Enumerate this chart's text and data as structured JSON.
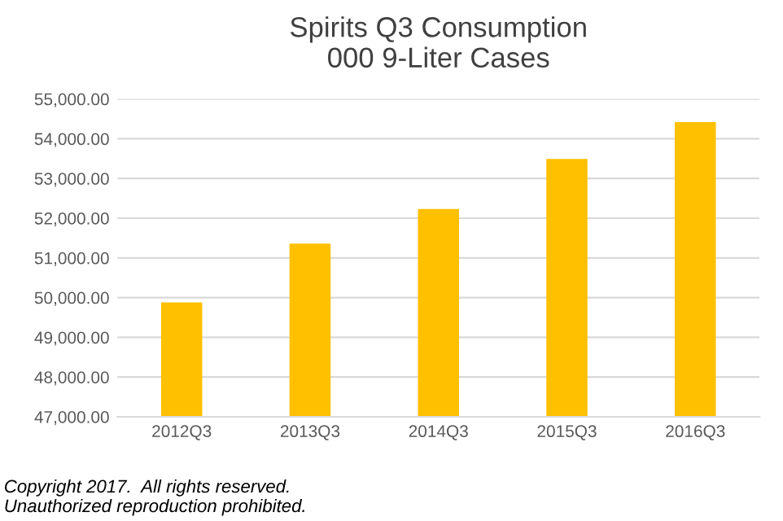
{
  "chart_data": {
    "type": "bar",
    "title": "Spirits Q3 Consumption\n000 9-Liter Cases",
    "categories": [
      "2012Q3",
      "2013Q3",
      "2014Q3",
      "2015Q3",
      "2016Q3"
    ],
    "values": [
      49880,
      51360,
      52230,
      53490,
      54420
    ],
    "color": "#ffc000",
    "ylim": [
      47000,
      55000
    ],
    "yticks": [
      {
        "value": 47000,
        "label": "47,000.00"
      },
      {
        "value": 48000,
        "label": "48,000.00"
      },
      {
        "value": 49000,
        "label": "49,000.00"
      },
      {
        "value": 50000,
        "label": "50,000.00"
      },
      {
        "value": 51000,
        "label": "51,000.00"
      },
      {
        "value": 52000,
        "label": "52,000.00"
      },
      {
        "value": 53000,
        "label": "53,000.00"
      },
      {
        "value": 54000,
        "label": "54,000.00"
      },
      {
        "value": 55000,
        "label": "55,000.00"
      }
    ],
    "grid": "y",
    "annotations": [
      "Copyright 2017.  All rights reserved.\nUnauthorized reproduction prohibited."
    ]
  }
}
